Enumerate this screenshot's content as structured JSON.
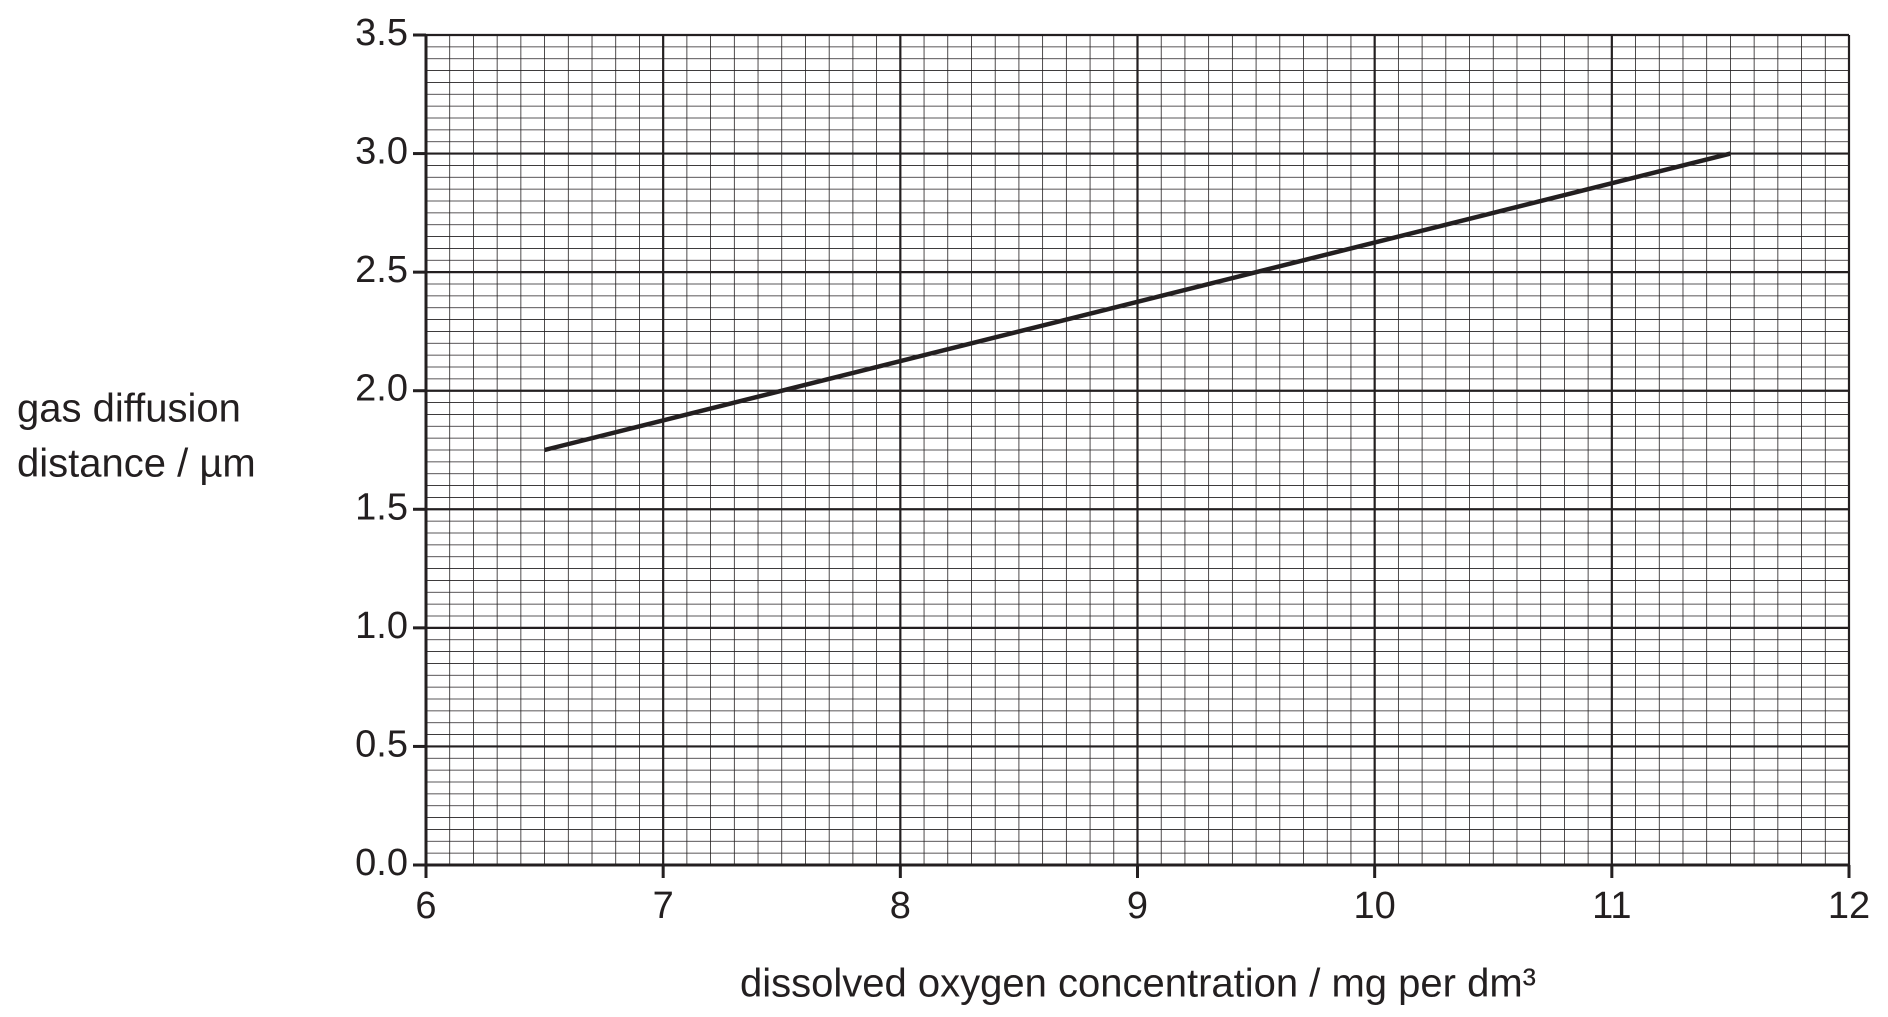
{
  "chart_data": {
    "type": "line",
    "ylabel": [
      "gas diffusion",
      "distance / µm"
    ],
    "xlabel": "dissolved oxygen concentration / mg per dm³",
    "x": [
      6.5,
      11.5
    ],
    "series": [
      {
        "color": "#231f20",
        "values": [
          1.75,
          3.0
        ]
      }
    ],
    "xlim": [
      6,
      12
    ],
    "xticks": [
      6,
      7,
      8,
      9,
      10,
      11,
      12
    ],
    "ylim": [
      0,
      3.5
    ],
    "yticks": [
      {
        "value": 0,
        "label": "0.0"
      },
      0.5,
      {
        "value": 1,
        "label": "1.0"
      },
      1.5,
      {
        "value": 2,
        "label": "2.0"
      },
      2.5,
      {
        "value": 3,
        "label": "3.0"
      },
      3.5
    ],
    "grid": true,
    "minor_grid_divisions": 10
  }
}
